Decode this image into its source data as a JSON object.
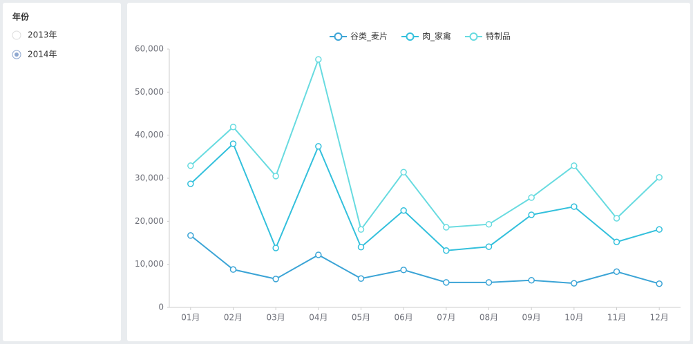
{
  "filter": {
    "title": "年份",
    "options": [
      {
        "label": "2013年",
        "selected": false
      },
      {
        "label": "2014年",
        "selected": true
      }
    ]
  },
  "chart_data": {
    "type": "line",
    "categories": [
      "01月",
      "02月",
      "03月",
      "04月",
      "05月",
      "06月",
      "07月",
      "08月",
      "09月",
      "10月",
      "11月",
      "12月"
    ],
    "series": [
      {
        "name": "谷类_麦片",
        "color": "#3ba4d6",
        "values": [
          16700,
          8800,
          6600,
          12200,
          6700,
          8700,
          5800,
          5800,
          6300,
          5600,
          8300,
          5500
        ]
      },
      {
        "name": "肉_家禽",
        "color": "#33c0dc",
        "values": [
          28700,
          38000,
          13800,
          37400,
          14000,
          22500,
          13200,
          14100,
          21500,
          23400,
          15200,
          18100
        ]
      },
      {
        "name": "特制品",
        "color": "#68dbe0",
        "values": [
          32900,
          41900,
          30500,
          57600,
          18100,
          31400,
          18600,
          19300,
          25500,
          32900,
          20700,
          30200
        ]
      }
    ],
    "ylim": [
      0,
      60000
    ],
    "yticks": [
      0,
      {
        "value": 10000,
        "label": "10,000"
      },
      {
        "value": 20000,
        "label": "20,000"
      },
      {
        "value": 30000,
        "label": "30,000"
      },
      {
        "value": 40000,
        "label": "40,000"
      },
      {
        "value": 50000,
        "label": "50,000"
      },
      {
        "value": 60000,
        "label": "60,000"
      }
    ],
    "legend": "top"
  }
}
